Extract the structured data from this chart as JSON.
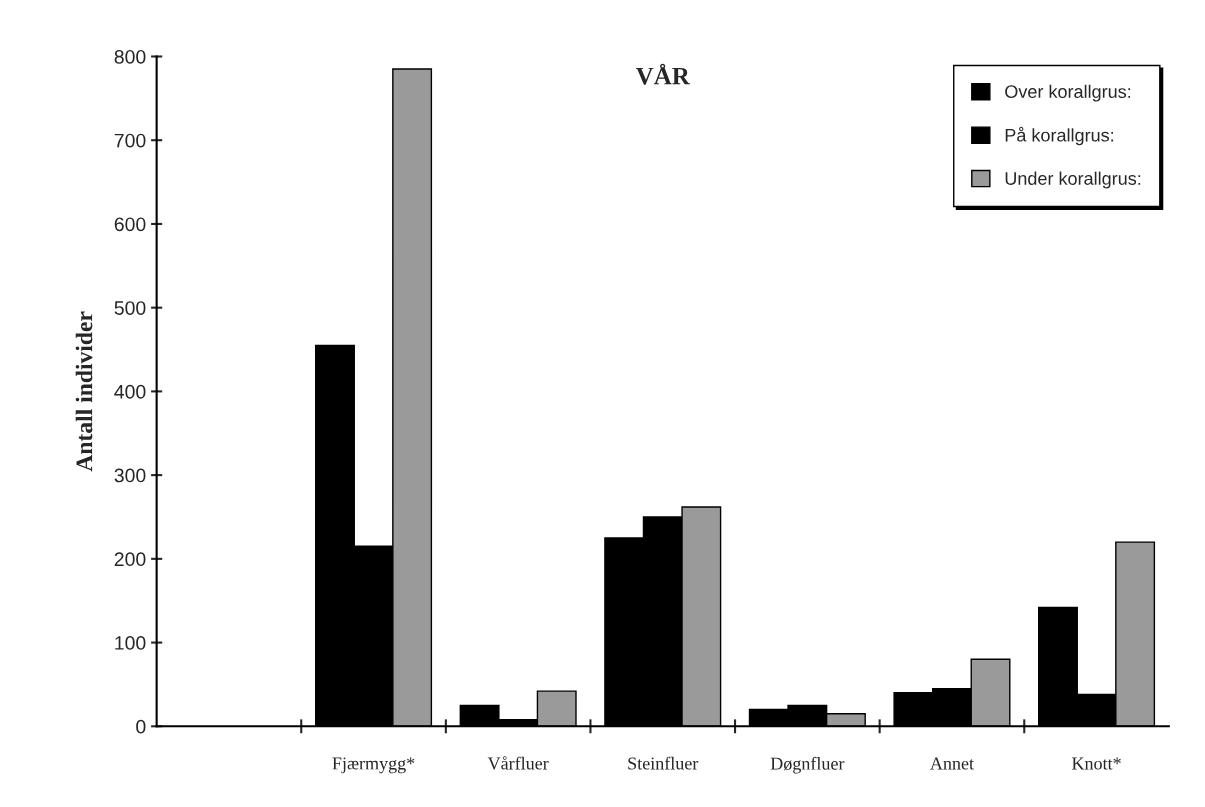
{
  "chart_data": {
    "type": "bar",
    "title": "VÅR",
    "ylabel": "Antall individer",
    "categories": [
      null,
      "Fjærmygg*",
      "Vårfluer",
      "Steinfluer",
      "Døgnfluer",
      "Annet",
      "Knott*"
    ],
    "series": [
      {
        "name": "Over korallgrus:",
        "color": "#000000",
        "values": [
          null,
          455,
          25,
          225,
          20,
          40,
          142
        ]
      },
      {
        "name": "På korallgrus:",
        "color": "#000000",
        "values": [
          null,
          215,
          8,
          250,
          25,
          45,
          38
        ]
      },
      {
        "name": "Under korallgrus:",
        "color": "#9a9a9a",
        "values": [
          null,
          785,
          42,
          262,
          15,
          80,
          220
        ]
      }
    ],
    "ylim": [
      0,
      800
    ],
    "yticks": [
      0,
      100,
      200,
      300,
      400,
      500,
      600,
      700,
      800
    ],
    "grid": false,
    "legend": "top right"
  }
}
